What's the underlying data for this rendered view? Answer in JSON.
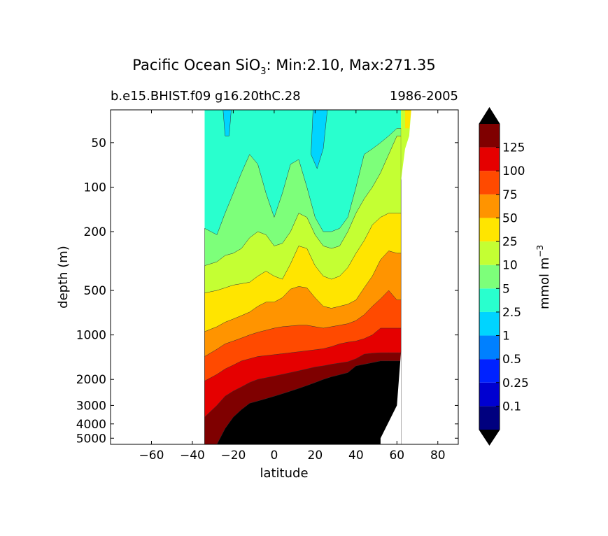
{
  "chart_data": {
    "type": "contourf",
    "title_main": "Pacific Ocean SiO",
    "title_subscript": "3",
    "title_stats": ": Min:2.10, Max:271.35",
    "subtitle_left": "b.e15.BHIST.f09 g16.20thC.28",
    "subtitle_right": "1986-2005",
    "xlabel": "latitude",
    "ylabel": "depth (m)",
    "xlim": [
      -80,
      90
    ],
    "ylim": [
      5500,
      30
    ],
    "y_scale": "log",
    "x_ticks": [
      -60,
      -40,
      -20,
      0,
      20,
      40,
      60,
      80
    ],
    "x_tick_labels": [
      "−60",
      "−40",
      "−20",
      "0",
      "20",
      "40",
      "60",
      "80"
    ],
    "y_ticks": [
      50,
      100,
      200,
      500,
      1000,
      2000,
      3000,
      4000,
      5000
    ],
    "y_tick_labels": [
      "50",
      "100",
      "200",
      "500",
      "1000",
      "2000",
      "3000",
      "4000",
      "5000"
    ],
    "data_extent": {
      "lat_min": -34,
      "lat_max": 68
    },
    "grid": false,
    "colorbar": {
      "label": "mmol m",
      "label_sup": "−3",
      "extend": "both",
      "levels": [
        0.1,
        0.25,
        0.5,
        1,
        2.5,
        5,
        10,
        25,
        50,
        75,
        100,
        125
      ],
      "tick_labels": [
        "0.1",
        "0.25",
        "0.5",
        "1",
        "2.5",
        "5",
        "10",
        "25",
        "50",
        "75",
        "100",
        "125"
      ],
      "colors": [
        "#00007f",
        "#0000d0",
        "#0022ff",
        "#0080ff",
        "#00d4ff",
        "#29ffce",
        "#7dff7a",
        "#c4ff33",
        "#ffe500",
        "#ff9400",
        "#ff4a00",
        "#e50000",
        "#7f0000"
      ],
      "under_color": "#000000",
      "over_color": "#000000"
    },
    "field_bands": {
      "comment_free": true,
      "colors": [
        "#29ffce",
        "#7dff7a",
        "#c4ff33",
        "#ffe500",
        "#ff9400",
        "#ff4a00",
        "#e50000",
        "#7f0000"
      ],
      "lat": [
        -34,
        -28,
        -24,
        -20,
        -16,
        -12,
        -8,
        -4,
        0,
        4,
        8,
        12,
        16,
        20,
        24,
        28,
        32,
        36,
        40,
        44,
        48,
        52,
        56,
        60,
        62
      ],
      "boundary_depths": [
        [
          190,
          210,
          150,
          110,
          80,
          60,
          70,
          110,
          160,
          110,
          70,
          65,
          100,
          160,
          200,
          200,
          190,
          160,
          100,
          60,
          55,
          50,
          45,
          40,
          40
        ],
        [
          340,
          320,
          290,
          280,
          260,
          220,
          200,
          210,
          250,
          240,
          200,
          150,
          160,
          210,
          250,
          260,
          250,
          200,
          150,
          120,
          100,
          80,
          60,
          45,
          45
        ],
        [
          520,
          500,
          480,
          460,
          450,
          440,
          400,
          370,
          400,
          420,
          330,
          250,
          260,
          340,
          400,
          420,
          400,
          350,
          280,
          230,
          180,
          160,
          150,
          150,
          150
        ],
        [
          950,
          880,
          820,
          780,
          740,
          700,
          640,
          600,
          600,
          560,
          490,
          470,
          480,
          560,
          640,
          660,
          640,
          620,
          580,
          480,
          400,
          310,
          270,
          280,
          280
        ],
        [
          1400,
          1250,
          1150,
          1100,
          1050,
          1000,
          960,
          930,
          900,
          880,
          870,
          860,
          860,
          880,
          900,
          880,
          860,
          840,
          800,
          730,
          640,
          570,
          500,
          580,
          580
        ],
        [
          2050,
          1850,
          1700,
          1600,
          1500,
          1450,
          1400,
          1380,
          1360,
          1340,
          1320,
          1300,
          1280,
          1260,
          1240,
          1200,
          1150,
          1120,
          1100,
          1060,
          1000,
          900,
          900,
          900,
          900
        ],
        [
          3600,
          3000,
          2600,
          2400,
          2250,
          2100,
          2000,
          1950,
          1900,
          1850,
          1800,
          1750,
          1700,
          1650,
          1620,
          1580,
          1550,
          1520,
          1450,
          1350,
          1330,
          1320,
          1320,
          1320,
          1320
        ],
        [
          5500,
          5500,
          4300,
          3600,
          3200,
          2900,
          2800,
          2700,
          2600,
          2500,
          2400,
          2300,
          2200,
          2100,
          2000,
          1920,
          1860,
          1800,
          1620,
          1580,
          1540,
          1500,
          1500,
          1500,
          1500
        ]
      ]
    },
    "bottom_lat": [
      -24,
      -20,
      -16,
      -12,
      -8,
      -4,
      0,
      4,
      8,
      12,
      16,
      20,
      24,
      28,
      32,
      36,
      40,
      44,
      48,
      50,
      52,
      54,
      56,
      58,
      60,
      62
    ],
    "bottom_depth": [
      5500,
      4300,
      3600,
      3200,
      2900,
      2800,
      2700,
      2600,
      2500,
      2400,
      2300,
      2200,
      2100,
      2000,
      1920,
      1860,
      1800,
      1620,
      1580,
      5500,
      5000,
      4600,
      4000,
      3300,
      2600,
      1300
    ]
  }
}
